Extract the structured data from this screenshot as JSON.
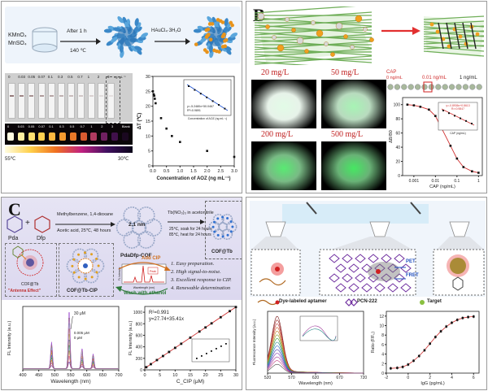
{
  "panelA": {
    "label": "A",
    "reagent1": "KMnO₄",
    "reagent2": "MnSO₄",
    "arrow1_top": "After 1 h",
    "arrow1_bottom": "140 ℃",
    "arrow2_top": "HAuCl₄·3H₂O",
    "strip_labels": [
      "0",
      "0.03",
      "0.05",
      "0.07",
      "0.1",
      "0.3",
      "0.5",
      "0.7",
      "1",
      "2",
      "3"
    ],
    "strip_unit": "ng mL⁻¹",
    "thermal_labels": [
      "0",
      "0.03",
      "0.05",
      "0.07",
      "0.1",
      "0.3",
      "0.5",
      "0.7",
      "1",
      "2",
      "3",
      "Blank"
    ],
    "temp_low": "55℃",
    "temp_high": "30℃",
    "chart_ylabel": "ΔT (℃)",
    "chart_xlabel": "Concentration of AOZ (ng mL⁻¹)",
    "inset_eq": "y=-5.2480x+50.0467",
    "inset_r2": "R²=0.9891",
    "inset_xlabel": "Concentration of AOZ (ng mL⁻¹)"
  },
  "panelB": {
    "label": "B",
    "fluor_labels": [
      "20 mg/L",
      "50 mg/L",
      "200 mg/L",
      "500 mg/L"
    ],
    "cap_label": "CAP",
    "cap_0": "0 ng/mL",
    "cap_001": "0.01 ng/mL",
    "cap_1": "1 ng/mL",
    "chart_ylabel": "ΔB/B0",
    "chart_xlabel": "CAP (ng/mL)",
    "inset_eq": "y=-0.8936x+0.8613",
    "inset_r2": "R²=0.9847",
    "inset_xlabel": "CAP (ng/mL)"
  },
  "panelC": {
    "label": "C",
    "pda": "Pda",
    "plus": "+",
    "dfp": "Dfp",
    "cond1": "Methylbenzene, 1,4-dioxane",
    "cond2": "Acetic acid, 25℃, 48 hours",
    "cof_label": "PdaDfp-COF",
    "pore_size": "2.1 nm",
    "tb_cond1": "Tb(NO₃)₃ in acetonitrile",
    "tb_cond2": "25℃, soak for 24 hours",
    "tb_cond3": "85℃, heat for 24 hours",
    "cof_tb": "COF@Tb",
    "add_cip": "Add CIP",
    "cof_tb_cip": "COF@Tb-CIP",
    "antenna": "\"Antenna Effect\"",
    "wash": "Wash with ethanol",
    "advantages": [
      "1.  Easy preparation.",
      "2.  High signal-to-noise.",
      "3.  Excellent response to CIP.",
      "4.  Renewable determination"
    ],
    "mini_xlabel": "Wavelength (nm)",
    "mini_ylabel": "FL Intensity",
    "mini_peak": "Peak",
    "spec_ylabel": "FL Intensity (a.u.)",
    "spec_xlabel": "Wavelength (nm)",
    "spec_top": "30 μM",
    "spec_mid": "0.005 μM",
    "spec_zero": "0 μM",
    "lin_r2": "R²=0.991",
    "lin_eq": "y=27.74+35.41x",
    "lin_ylabel": "FL Intensity (a.u.)",
    "lin_xlabel": "C_CIP (μM)"
  },
  "panelD": {
    "label": "D",
    "pet": "PET",
    "fret": "FRET",
    "legend1": "Dye-labeled aptamer",
    "legend2": "PCN-222",
    "legend3": "Target",
    "spec_ylabel": "Fluorescence Intensity (a.u.)",
    "spec_xlabel": "Wavelength (nm)",
    "cal_ylabel": "Ratio (F/F₀)",
    "cal_xlabel": "IgG (pg/mL)"
  },
  "chart_data": [
    {
      "id": "A-dT-vs-AOZ",
      "type": "scatter",
      "title": "",
      "xlabel": "Concentration of AOZ (ng mL⁻¹)",
      "ylabel": "ΔT (℃)",
      "xlim": [
        0,
        3
      ],
      "ylim": [
        0,
        30
      ],
      "x_ticks": [
        "0.0",
        "0.5",
        "1.0",
        "1.5",
        "2.0",
        "2.5",
        "3.0"
      ],
      "y_ticks": [
        "0",
        "5",
        "10",
        "15",
        "20",
        "25",
        "30"
      ],
      "x": [
        0,
        0.03,
        0.05,
        0.07,
        0.1,
        0.3,
        0.5,
        0.7,
        1.0,
        2.0,
        3.0
      ],
      "y": [
        25,
        24,
        23.5,
        22.5,
        21,
        16,
        12.5,
        10,
        8,
        5,
        3
      ]
    },
    {
      "id": "B-inhibition",
      "type": "line",
      "xlabel": "CAP (ng/mL)",
      "ylabel": "ΔB/B0",
      "x_ticks": [
        "0.001",
        "0.01",
        "0.1",
        "1"
      ],
      "y_ticks": [
        "0",
        "20",
        "40",
        "60",
        "80",
        "100"
      ],
      "ylim": [
        0,
        110
      ],
      "x": [
        0.0005,
        0.001,
        0.002,
        0.005,
        0.01,
        0.02,
        0.05,
        0.1,
        0.2,
        0.5,
        1
      ],
      "y": [
        100,
        99,
        97,
        93,
        84,
        66,
        42,
        24,
        12,
        6,
        4
      ]
    },
    {
      "id": "C-spectra",
      "type": "line",
      "xlabel": "Wavelength (nm)",
      "ylabel": "FL Intensity (a.u.)",
      "x_ticks": [
        "400",
        "450",
        "500",
        "550",
        "600",
        "650",
        "700"
      ],
      "xlim": [
        400,
        700
      ],
      "peaks_nm": [
        490,
        545,
        585,
        620
      ],
      "series": [
        {
          "name": "30 μM",
          "peak_545": 1.0
        },
        {
          "name": "0.005 μM",
          "peak_545": 0.28
        },
        {
          "name": "0 μM",
          "peak_545": 0.12
        }
      ]
    },
    {
      "id": "C-linear",
      "type": "scatter",
      "xlabel": "C_CIP (μM)",
      "ylabel": "FL Intensity (a.u.)",
      "xlim": [
        0,
        30
      ],
      "ylim": [
        0,
        1100
      ],
      "x_ticks": [
        "0",
        "5",
        "10",
        "15",
        "20",
        "25",
        "30"
      ],
      "y_ticks": [
        "0",
        "200",
        "400",
        "600",
        "800",
        "1000"
      ],
      "x": [
        0.5,
        2,
        4,
        6,
        8,
        10,
        12,
        15,
        18,
        20,
        22,
        25,
        28,
        30
      ],
      "y": [
        46,
        99,
        170,
        240,
        311,
        382,
        453,
        559,
        665,
        736,
        807,
        913,
        1019,
        1090
      ]
    },
    {
      "id": "D-spectra",
      "type": "line",
      "xlabel": "Wavelength (nm)",
      "ylabel": "Fluorescence Intensity (a.u.)",
      "x_ticks": [
        "520",
        "570",
        "620",
        "670",
        "720"
      ],
      "xlim": [
        520,
        720
      ]
    },
    {
      "id": "D-calibration",
      "type": "scatter",
      "xlabel": "IgG (pg/mL)",
      "ylabel": "Ratio (F/F₀)",
      "x_ticks": [
        "-2",
        "0",
        "2",
        "4",
        "6"
      ],
      "y_ticks": [
        "0",
        "2",
        "4",
        "6",
        "8",
        "10",
        "12"
      ],
      "xlim": [
        -2,
        6.5
      ],
      "ylim": [
        0,
        13
      ],
      "x": [
        -1.6,
        -1,
        -0.5,
        0,
        0.5,
        1,
        1.5,
        2,
        2.5,
        3,
        3.5,
        4,
        4.5,
        5,
        5.5,
        6
      ],
      "y": [
        1.0,
        1.1,
        1.3,
        1.8,
        2.6,
        3.6,
        4.8,
        6.2,
        7.6,
        8.8,
        9.8,
        10.6,
        11.2,
        11.6,
        11.8,
        11.9
      ]
    }
  ]
}
